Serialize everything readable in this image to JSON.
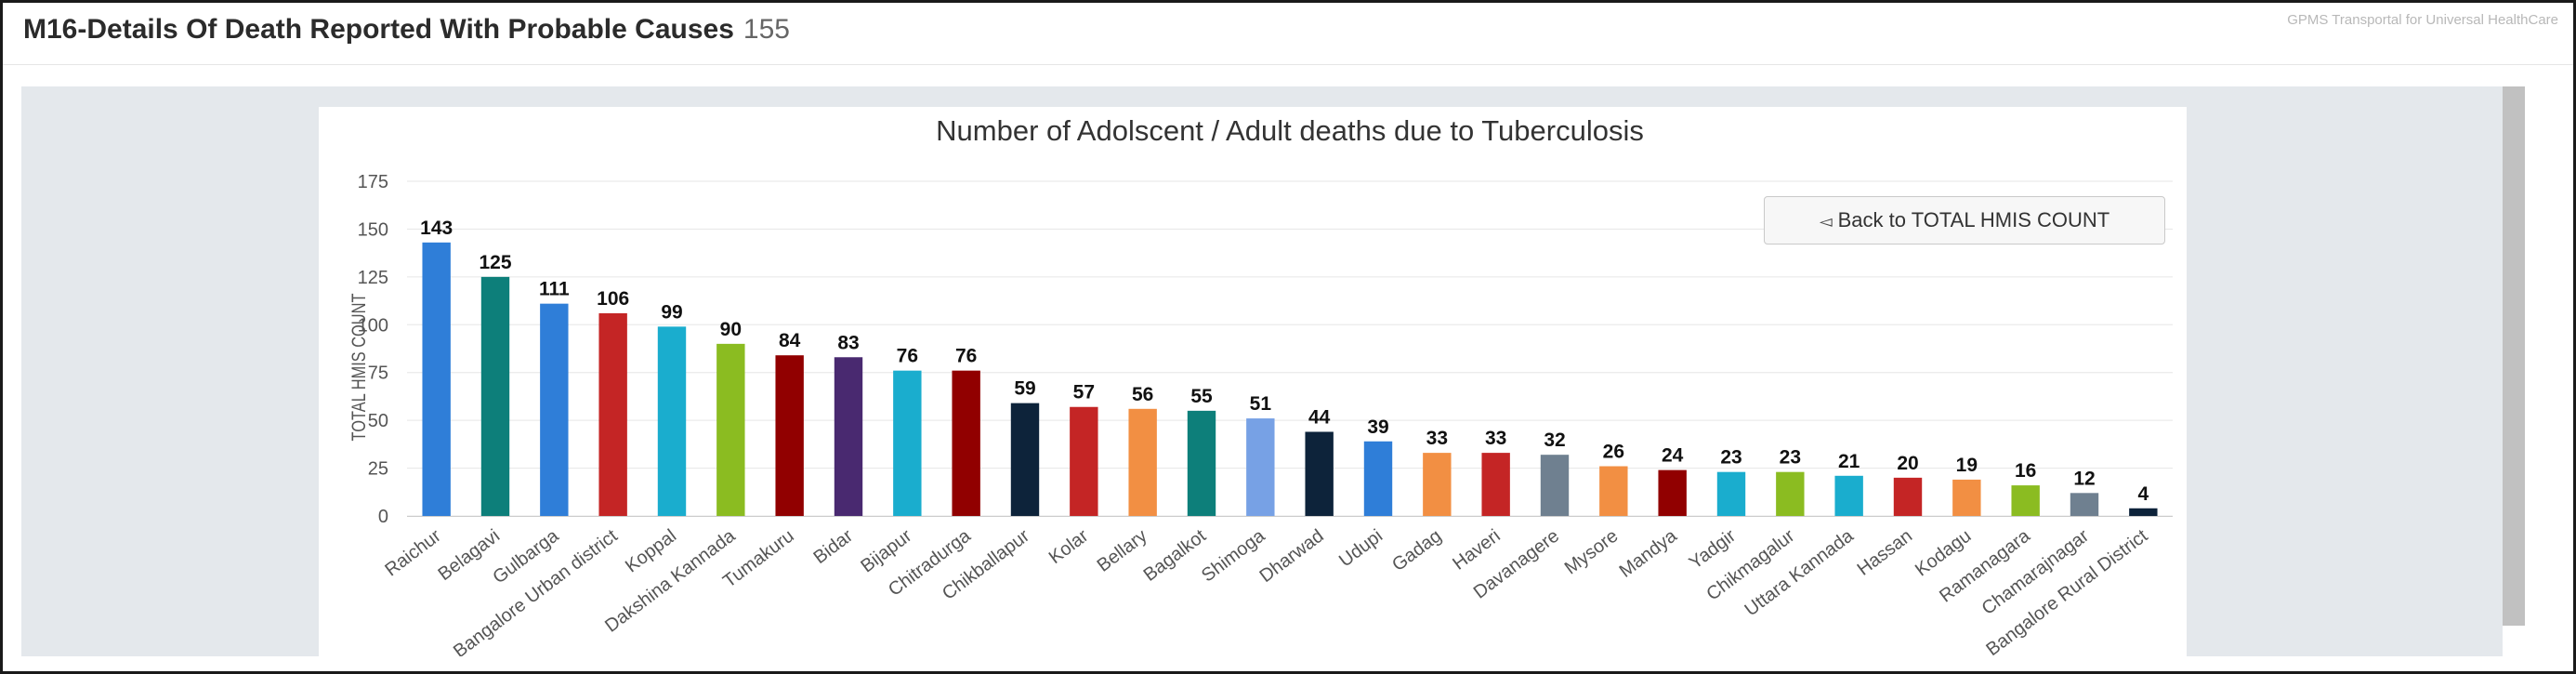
{
  "header": {
    "title": "M16-Details Of Death Reported With Probable Causes",
    "count": "155",
    "brand": "GPMS Transportal for Universal HealthCare"
  },
  "button": {
    "back_label": "Back to TOTAL HMIS COUNT",
    "back_icon": "left-triangle-icon"
  },
  "chart_data": {
    "type": "bar",
    "title": "Number of Adolscent / Adult deaths due to Tuberculosis",
    "ylabel": "TOTAL HMIS COUNT",
    "xlabel": "",
    "ylim": [
      0,
      175
    ],
    "yticks": [
      0,
      25,
      50,
      75,
      100,
      125,
      150,
      175
    ],
    "grid": true,
    "legend": "none",
    "categories": [
      "Raichur",
      "Belagavi",
      "Gulbarga",
      "Bangalore Urban district",
      "Koppal",
      "Dakshina Kannada",
      "Tumakuru",
      "Bidar",
      "Bijapur",
      "Chitradurga",
      "Chikballapur",
      "Kolar",
      "Bellary",
      "Bagalkot",
      "Shimoga",
      "Dharwad",
      "Udupi",
      "Gadag",
      "Haveri",
      "Davanagere",
      "Mysore",
      "Mandya",
      "Yadgir",
      "Chikmagalur",
      "Uttara Kannada",
      "Hassan",
      "Kodagu",
      "Ramanagara",
      "Chamarajnagar",
      "Bangalore Rural District"
    ],
    "values": [
      143,
      125,
      111,
      106,
      99,
      90,
      84,
      83,
      76,
      76,
      59,
      57,
      56,
      55,
      51,
      44,
      39,
      33,
      33,
      32,
      26,
      24,
      23,
      23,
      21,
      20,
      19,
      16,
      12,
      4
    ],
    "colors": [
      "#2f7ed8",
      "#0d7f7a",
      "#2f7ed8",
      "#c42525",
      "#1aadce",
      "#8bbc21",
      "#910000",
      "#492970",
      "#1aadce",
      "#910000",
      "#0d233a",
      "#c42525",
      "#f28f43",
      "#0d7f7a",
      "#77a1e5",
      "#0d233a",
      "#2f7ed8",
      "#f28f43",
      "#c42525",
      "#6f8090",
      "#f28f43",
      "#910000",
      "#1aadce",
      "#8bbc21",
      "#1aadce",
      "#c42525",
      "#f28f43",
      "#8bbc21",
      "#6f8090",
      "#0d233a"
    ]
  }
}
